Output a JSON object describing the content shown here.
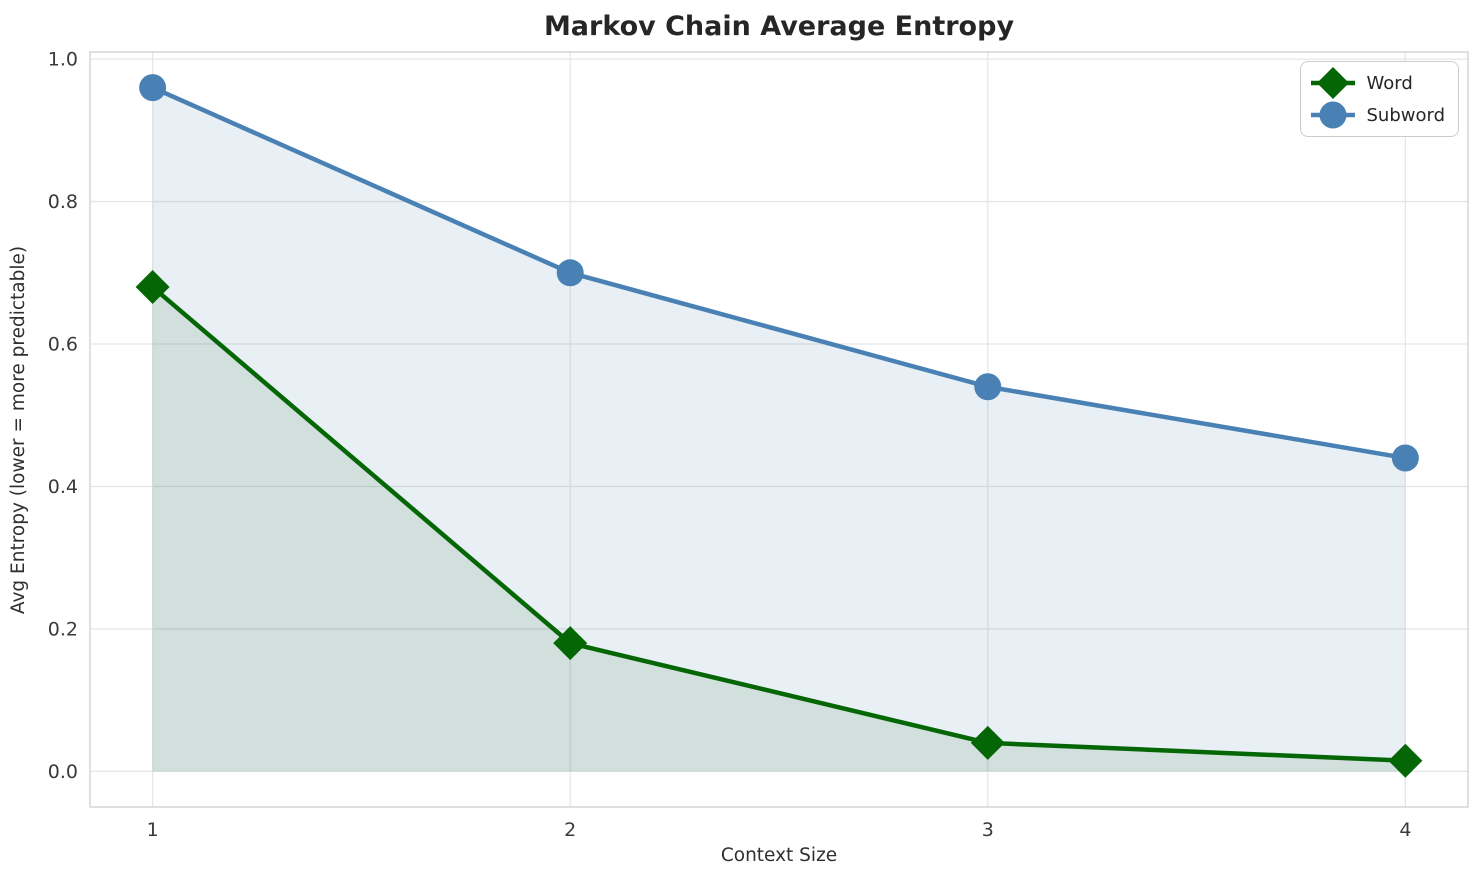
{
  "chart_data": {
    "type": "line",
    "title": "Markov Chain Average Entropy",
    "xlabel": "Context Size",
    "ylabel": "Avg Entropy (lower = more predictable)",
    "x": [
      1,
      2,
      3,
      4
    ],
    "x_tick_labels": [
      "1",
      "2",
      "3",
      "4"
    ],
    "y_ticks": [
      0.0,
      0.2,
      0.4,
      0.6,
      0.8,
      1.0
    ],
    "y_tick_labels": [
      "0.0",
      "0.2",
      "0.4",
      "0.6",
      "0.8",
      "1.0"
    ],
    "xlim": [
      0.85,
      4.15
    ],
    "ylim": [
      -0.05,
      1.01
    ],
    "grid": true,
    "legend_position": "upper right",
    "area_baseline": 0,
    "series": [
      {
        "name": "Word",
        "marker": "diamond",
        "color": "#056605",
        "fill_color": "rgba(5,100,5,0.10)",
        "values": [
          0.68,
          0.18,
          0.04,
          0.015
        ]
      },
      {
        "name": "Subword",
        "marker": "circle",
        "color": "#4a81b4",
        "fill_color": "rgba(74,129,180,0.13)",
        "values": [
          0.96,
          0.7,
          0.54,
          0.44
        ]
      }
    ]
  }
}
